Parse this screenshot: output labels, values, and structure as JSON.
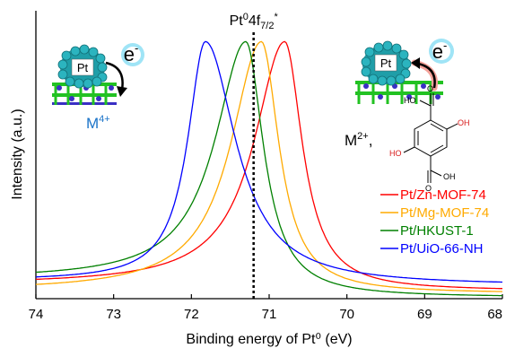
{
  "chart_data": {
    "type": "line",
    "xlabel": "Binding energy of Pt⁰ (eV)",
    "ylabel": "Intensity (a.u.)",
    "xlim": [
      74,
      68
    ],
    "x_reversed": true,
    "ylim": [
      0,
      1.12
    ],
    "x_ticks": [
      "74",
      "73",
      "72",
      "71",
      "70",
      "69",
      "68"
    ],
    "grid": false,
    "legend_position": "right",
    "reference_line": {
      "x": 71.2,
      "style": "dotted",
      "label_main": "Pt",
      "label_sup": "0",
      "label_rest": "4f",
      "label_sub": "7/2",
      "label_star": "*"
    },
    "series": [
      {
        "name": "Pt/Zn-MOF-74",
        "color": "#ff0000",
        "peak_x": 70.8,
        "peak_y": 1.0,
        "left_width": 0.95,
        "right_width": 0.55,
        "base_left": 0.055,
        "base_right": 0.03
      },
      {
        "name": "Pt/Mg-MOF-74",
        "color": "#ffaa00",
        "peak_x": 71.1,
        "peak_y": 1.0,
        "left_width": 0.95,
        "right_width": 0.55,
        "base_left": 0.03,
        "base_right": 0.02
      },
      {
        "name": "Pt/HKUST-1",
        "color": "#008000",
        "peak_x": 71.3,
        "peak_y": 1.0,
        "left_width": 0.95,
        "right_width": 0.55,
        "base_left": 0.075,
        "base_right": 0.005
      },
      {
        "name": "Pt/UiO-66-NH",
        "color": "#0000ff",
        "peak_x": 71.82,
        "peak_y": 1.0,
        "left_width": 0.55,
        "right_width": 0.95,
        "base_left": 0.07,
        "base_right": 0.05
      }
    ]
  },
  "annotations": {
    "left_pt_label": "Pt",
    "left_electron_label": "e",
    "left_electron_sup": "-",
    "m4_main": "M",
    "m4_sup": "4+",
    "right_pt_label": "Pt",
    "right_electron_label": "e",
    "right_electron_sup": "-",
    "m2_main": "M",
    "m2_sup": "2+",
    "m2_comma": ",",
    "linker_ho_1": "HO",
    "linker_oh_1": "OH",
    "linker_ho_2": "HO",
    "linker_oh_2": "OH",
    "linker_o_1": "O",
    "linker_o_2": "O",
    "colors": {
      "sphere": "#1f9ea8",
      "sphere_dark": "#137078",
      "support_green": "#22c222",
      "support_blue": "#3a2fc4",
      "electron_glow": "#9fe4f6",
      "arrow_left": "#000000",
      "arrow_right_glow": "#f4a29a",
      "m4_color": "#1a73c8",
      "hydroxyl_red": "#d81b1b"
    }
  }
}
